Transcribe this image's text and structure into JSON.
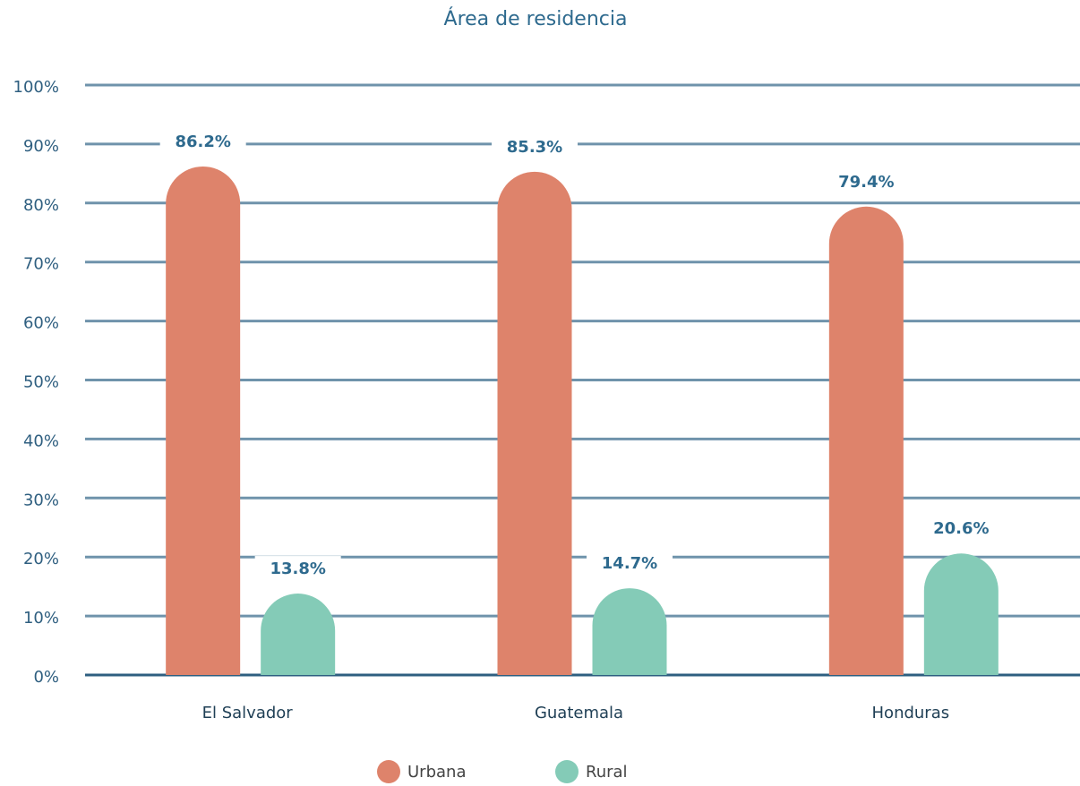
{
  "chart_data": {
    "type": "bar",
    "title": "Área de residencia",
    "categories": [
      "El Salvador",
      "Guatemala",
      "Honduras"
    ],
    "series": [
      {
        "name": "Urbana",
        "color": "#de836b",
        "values": [
          86.2,
          85.3,
          79.4
        ],
        "value_labels": [
          "86.2%",
          "85.3%",
          "79.4%"
        ]
      },
      {
        "name": "Rural",
        "color": "#84cbb7",
        "values": [
          13.8,
          14.7,
          20.6
        ],
        "value_labels": [
          "13.8%",
          "14.7%",
          "20.6%"
        ]
      }
    ],
    "ylim": [
      0,
      100
    ],
    "yticks": [
      {
        "value": 0,
        "label": "0%"
      },
      {
        "value": 10,
        "label": "10%"
      },
      {
        "value": 20,
        "label": "20%"
      },
      {
        "value": 30,
        "label": "30%"
      },
      {
        "value": 40,
        "label": "40%"
      },
      {
        "value": 50,
        "label": "50%"
      },
      {
        "value": 60,
        "label": "60%"
      },
      {
        "value": 70,
        "label": "70%"
      },
      {
        "value": 80,
        "label": "80%"
      },
      {
        "value": 90,
        "label": "90%"
      },
      {
        "value": 100,
        "label": "100%"
      }
    ],
    "grid": true,
    "legend": "bottom"
  }
}
